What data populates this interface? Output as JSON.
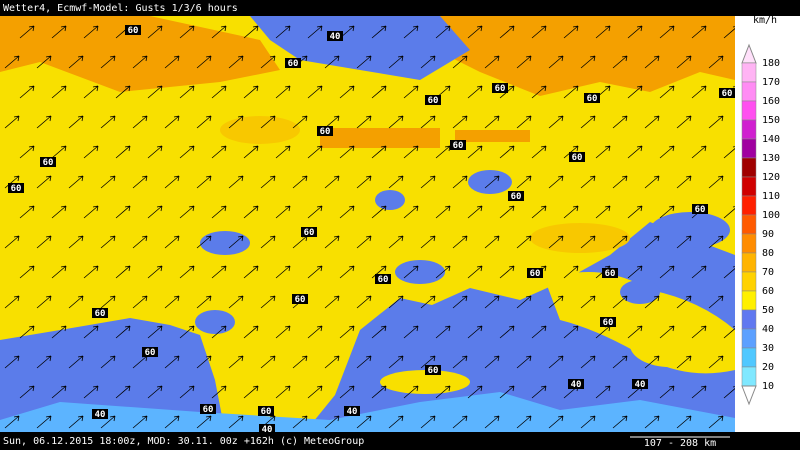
{
  "header": {
    "title": "Wetter4, Ecmwf-Model: Gusts 1/3/6 hours"
  },
  "footer": {
    "info": "Sun, 06.12.2015 18:00z, MOD: 30.11. 00z +162h (c) MeteoGroup",
    "scale": "107 - 208 km"
  },
  "legend": {
    "unit": "km/h",
    "labels": [
      180,
      170,
      160,
      150,
      140,
      130,
      120,
      110,
      100,
      90,
      80,
      70,
      60,
      50,
      40,
      30,
      20,
      10
    ],
    "colors": [
      "#ffe0fa",
      "#ffb4f4",
      "#ff8cf4",
      "#ff50f0",
      "#d020d0",
      "#a000a0",
      "#a00000",
      "#d00000",
      "#ff2000",
      "#ff5a00",
      "#ff8c00",
      "#ffb400",
      "#ffd200",
      "#fff000",
      "#6078f0",
      "#5ca0ff",
      "#50c8ff",
      "#80e8ff",
      "#ffffff"
    ]
  },
  "map": {
    "contour_labels": [
      "60",
      "40",
      "60",
      "60",
      "60",
      "60",
      "60",
      "60",
      "60",
      "60",
      "60",
      "60",
      "60",
      "60",
      "60",
      "60",
      "60",
      "60",
      "60",
      "60",
      "60",
      "60",
      "60",
      "40",
      "40",
      "40",
      "60",
      "60",
      "40",
      "40"
    ]
  }
}
